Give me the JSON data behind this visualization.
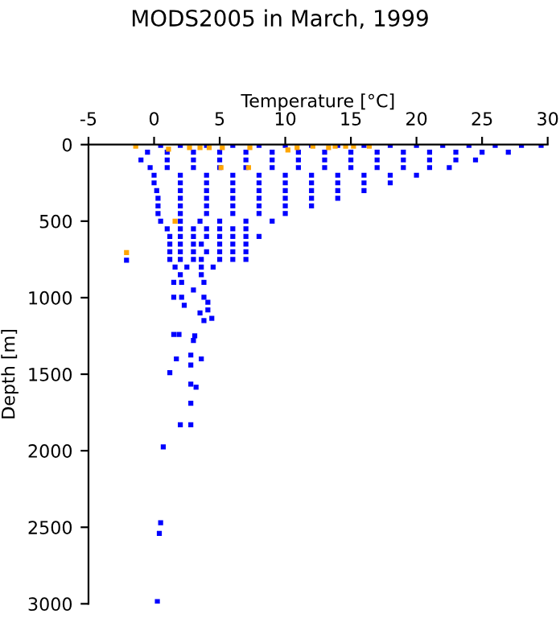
{
  "chart_data": {
    "type": "scatter",
    "title": "MODS2005 in March, 1999",
    "xlabel": "Temperature [°C]",
    "ylabel": "Depth [m]",
    "xlim": [
      -5,
      30
    ],
    "xticks": [
      -5,
      0,
      5,
      10,
      15,
      20,
      25,
      30
    ],
    "ylim": [
      3000,
      0
    ],
    "yticks": [
      0,
      500,
      1000,
      1500,
      2000,
      2500,
      3000
    ],
    "grid": false,
    "legend": false,
    "marker": "square",
    "series": [
      {
        "color": "#0000ff",
        "x": [
          0.5,
          2,
          4,
          6,
          8,
          10,
          12,
          14,
          16,
          18,
          20,
          22,
          24,
          26,
          28,
          29.5,
          -0.5,
          1,
          3,
          5,
          7,
          9,
          11,
          13,
          15,
          17,
          19,
          21,
          23,
          25,
          27,
          -1,
          1,
          3,
          5,
          7,
          9,
          11,
          13,
          15,
          17,
          19,
          21,
          23,
          24.5,
          -0.3,
          1,
          3,
          5,
          7,
          9,
          11,
          13,
          15,
          17,
          19,
          21,
          22.5,
          0,
          2,
          4,
          6,
          8,
          10,
          12,
          14,
          16,
          18,
          20,
          0,
          2,
          4,
          6,
          8,
          10,
          12,
          14,
          16,
          18,
          0.2,
          2,
          4,
          6,
          8,
          10,
          12,
          14,
          16,
          0.3,
          2,
          4,
          6,
          8,
          10,
          12,
          14,
          0.3,
          2,
          4,
          6,
          8,
          10,
          12,
          0.3,
          2,
          4,
          6,
          8,
          10,
          0.5,
          2,
          3.5,
          5,
          7,
          9,
          1,
          2,
          3,
          4,
          5,
          6,
          7,
          1.2,
          2,
          3,
          4,
          5,
          6,
          7,
          8,
          1.2,
          2,
          3,
          3.6,
          5,
          6,
          7,
          1.2,
          2,
          3,
          4,
          5,
          6,
          7,
          1.2,
          2,
          3,
          3.6,
          5,
          6,
          7,
          1.6,
          2.5,
          3.6,
          4.5,
          2.0,
          3.6,
          1.5,
          2.1,
          3.8,
          3.0,
          -2.1,
          2.3,
          3.8,
          1.5,
          2.1,
          3.8,
          4.1,
          4.1,
          3.5,
          4.4,
          1.5,
          1.9,
          3.1,
          3.0,
          1.7,
          2.8,
          3.6,
          2.8,
          1.2,
          2.8,
          3.2,
          2.8,
          2.0,
          2.8,
          0.7,
          0.5,
          0.4,
          0.25
        ],
        "values": [
          5,
          5,
          5,
          5,
          5,
          5,
          5,
          5,
          5,
          5,
          5,
          5,
          5,
          5,
          5,
          5,
          50,
          50,
          50,
          50,
          50,
          50,
          50,
          50,
          50,
          50,
          50,
          50,
          50,
          50,
          50,
          100,
          100,
          100,
          100,
          100,
          100,
          100,
          100,
          100,
          100,
          100,
          100,
          100,
          100,
          150,
          150,
          150,
          150,
          150,
          150,
          150,
          150,
          150,
          150,
          150,
          150,
          150,
          200,
          200,
          200,
          200,
          200,
          200,
          200,
          200,
          200,
          200,
          200,
          250,
          250,
          250,
          250,
          250,
          250,
          250,
          250,
          250,
          250,
          300,
          300,
          300,
          300,
          300,
          300,
          300,
          300,
          300,
          350,
          350,
          350,
          350,
          350,
          350,
          350,
          350,
          400,
          400,
          400,
          400,
          400,
          400,
          400,
          450,
          450,
          450,
          450,
          450,
          450,
          500,
          500,
          500,
          500,
          500,
          500,
          550,
          550,
          550,
          550,
          550,
          550,
          550,
          600,
          600,
          600,
          600,
          600,
          600,
          600,
          600,
          650,
          650,
          650,
          650,
          650,
          650,
          650,
          700,
          700,
          700,
          700,
          700,
          700,
          700,
          750,
          750,
          750,
          750,
          750,
          750,
          750,
          800,
          800,
          800,
          800,
          850,
          850,
          900,
          900,
          900,
          950,
          755,
          1050,
          1150,
          997,
          997,
          997,
          1030,
          1080,
          1100,
          1135,
          1240,
          1240,
          1250,
          1280,
          1400,
          1375,
          1400,
          1440,
          1490,
          1565,
          1585,
          1690,
          1830,
          1830,
          1975,
          2470,
          2540,
          2985
        ]
      },
      {
        "color": "#ffa500",
        "x": [
          -1.4,
          1.1,
          2.7,
          3.5,
          4.2,
          5.2,
          7.3,
          10.2,
          10.9,
          12.1,
          13.3,
          13.8,
          14.6,
          15.2,
          16.4,
          5.1,
          7.2,
          1.6,
          -2.1
        ],
        "values": [
          10,
          30,
          20,
          20,
          20,
          20,
          20,
          35,
          20,
          10,
          20,
          10,
          10,
          10,
          10,
          150,
          150,
          500,
          705
        ]
      }
    ]
  }
}
